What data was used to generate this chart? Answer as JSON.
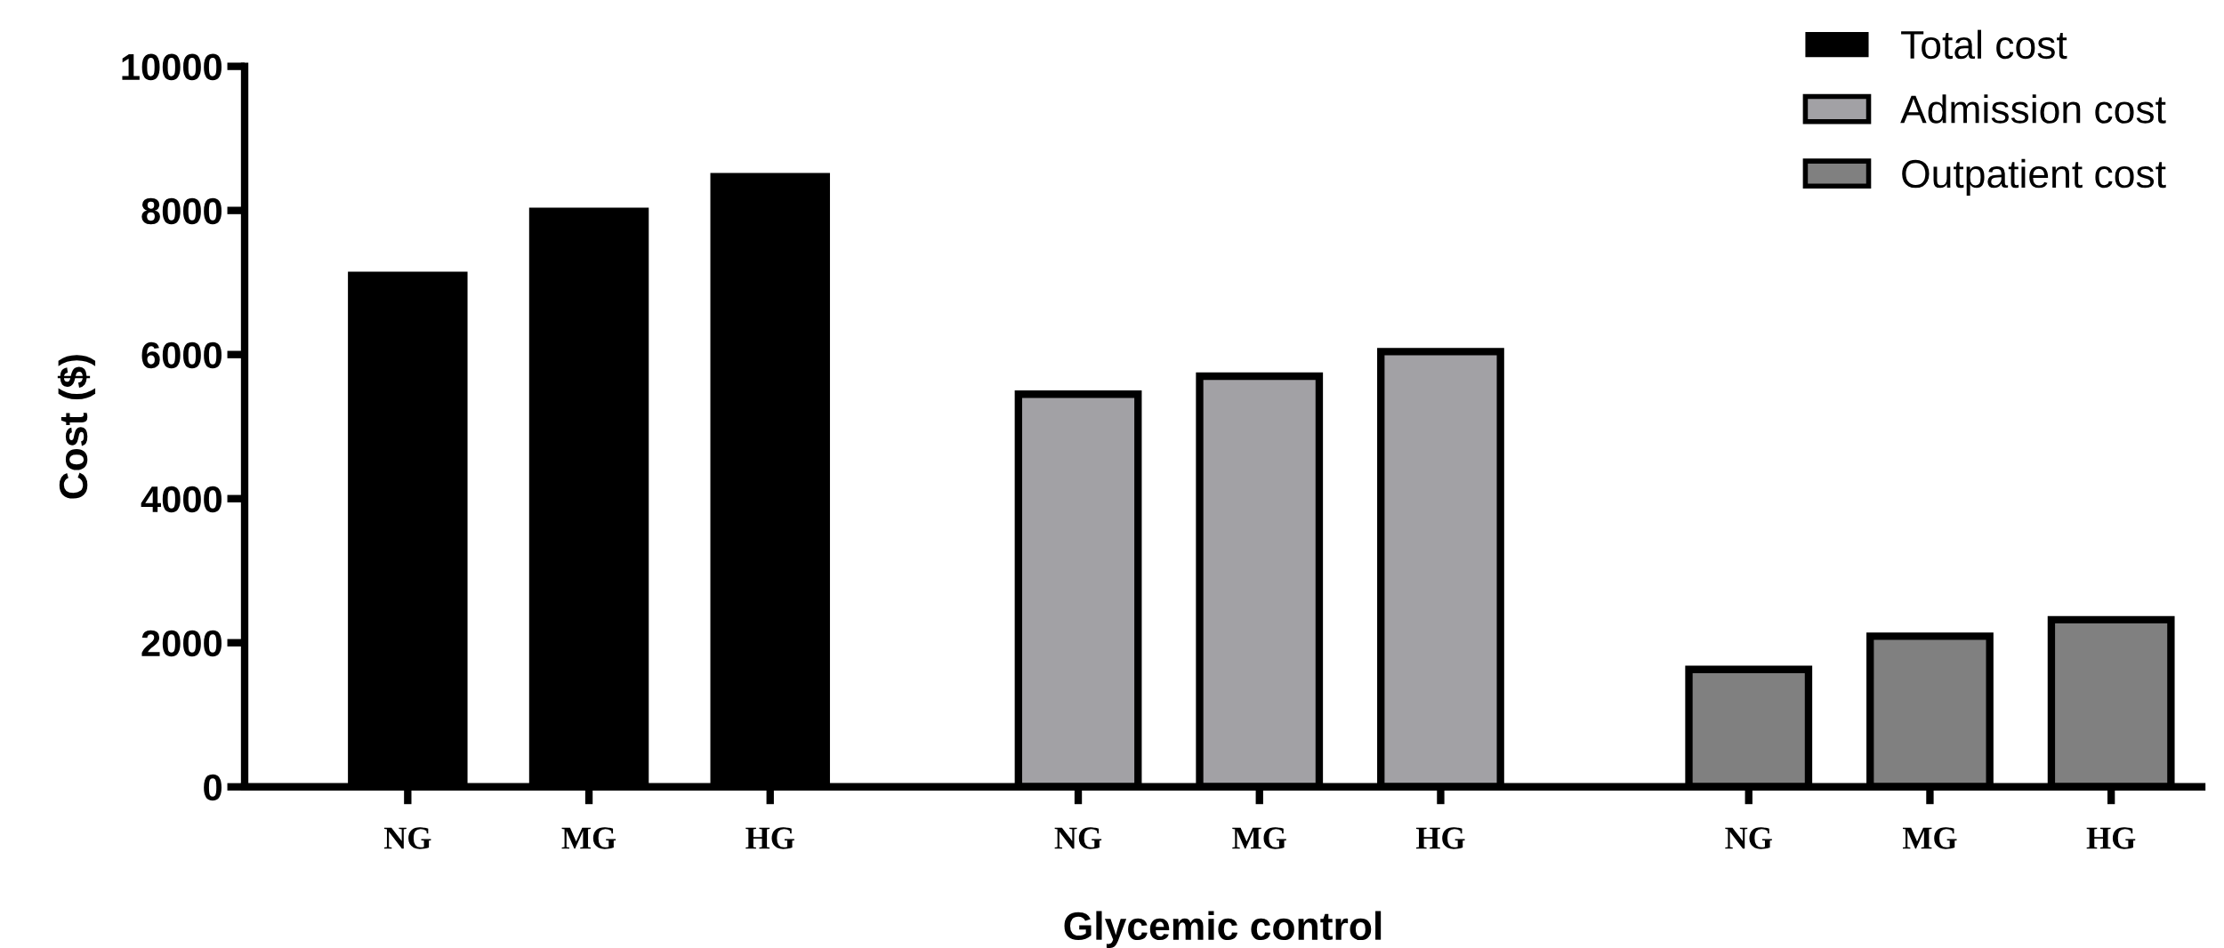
{
  "chart_data": {
    "type": "bar",
    "xlabel": "Glycemic control",
    "ylabel": "Cost ($)",
    "categories": [
      "NG",
      "MG",
      "HG",
      "NG",
      "MG",
      "HG",
      "NG",
      "MG",
      "HG"
    ],
    "series": [
      {
        "name": "Total cost",
        "color": "#000000",
        "values": [
          7150,
          8040,
          8520,
          null,
          null,
          null,
          null,
          null,
          null
        ]
      },
      {
        "name": "Admission cost",
        "color": "#a2a1a5",
        "values": [
          null,
          null,
          null,
          5450,
          5700,
          6040,
          null,
          null,
          null
        ]
      },
      {
        "name": "Outpatient cost",
        "color": "#808080",
        "values": [
          null,
          null,
          null,
          null,
          null,
          null,
          1630,
          2090,
          2320
        ]
      }
    ],
    "ylim": [
      0,
      10000
    ],
    "yticks": [
      0,
      2000,
      4000,
      6000,
      8000,
      10000
    ],
    "grid": false,
    "legend": "top right"
  }
}
